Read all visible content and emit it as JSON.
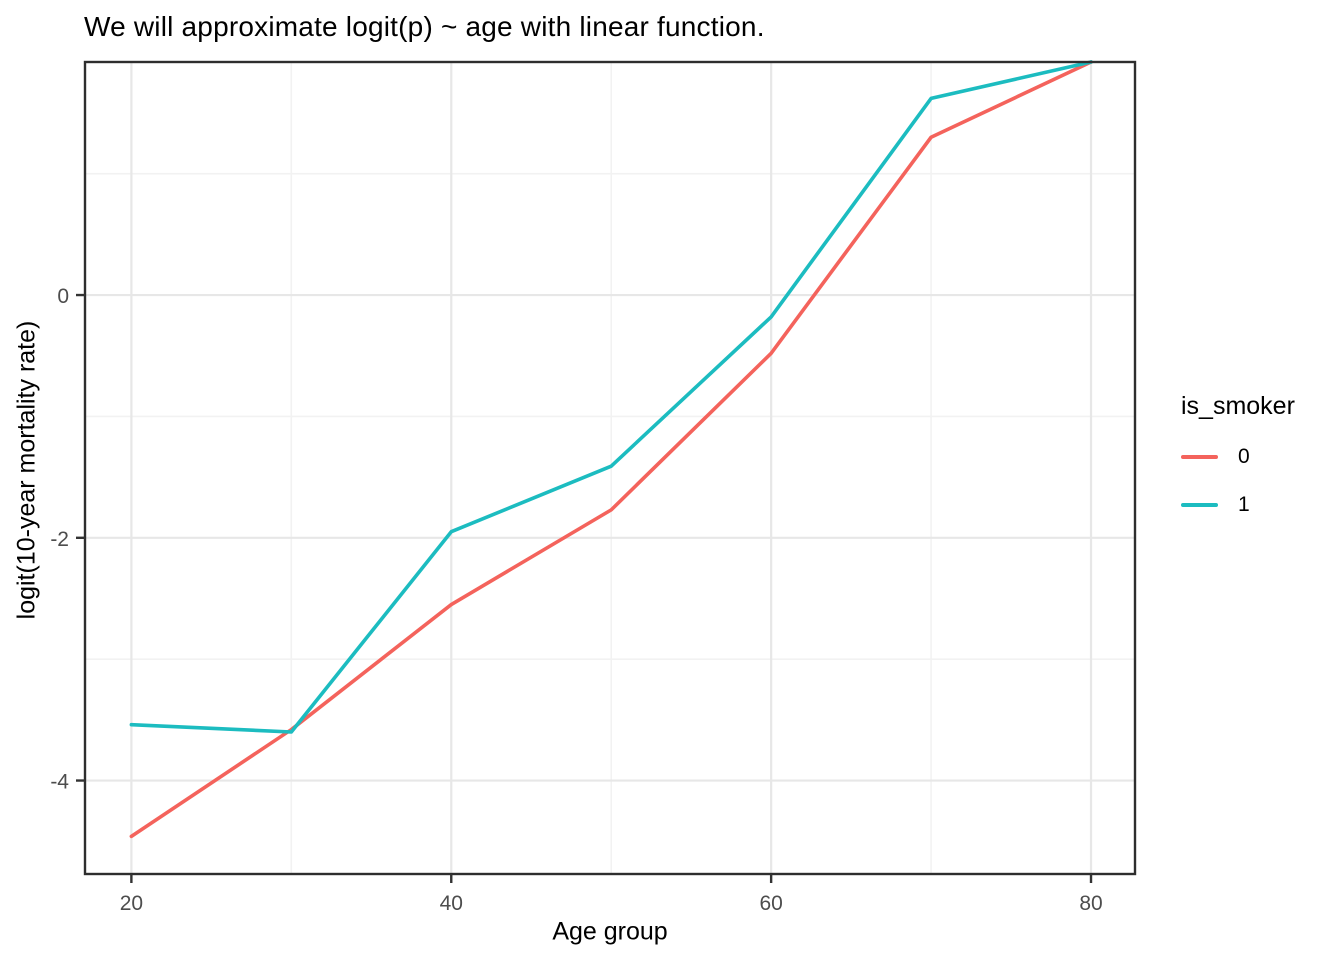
{
  "title": "We will approximate logit(p) ~ age with linear function.",
  "chart_data": {
    "type": "line",
    "x": [
      20,
      30,
      40,
      50,
      60,
      70,
      80
    ],
    "series": [
      {
        "name": "0",
        "color": "#F4635C",
        "values": [
          -4.46,
          -3.58,
          -2.55,
          -1.77,
          -0.48,
          1.3,
          1.92
        ]
      },
      {
        "name": "1",
        "color": "#1CBCC0",
        "values": [
          -3.54,
          -3.6,
          -1.95,
          -1.41,
          -0.18,
          1.62,
          1.92
        ]
      }
    ],
    "title": "We will approximate logit(p) ~ age with linear function.",
    "xlabel": "Age group",
    "ylabel": "logit(10-year mortality rate)",
    "xlim": [
      17.1,
      82.75
    ],
    "ylim": [
      -4.77,
      1.92
    ],
    "x_ticks": {
      "major": [
        20,
        40,
        60,
        80
      ],
      "minor": [
        30,
        50,
        70
      ],
      "labels": [
        "20",
        "40",
        "60",
        "80"
      ]
    },
    "y_ticks": {
      "major": [
        0,
        -2,
        -4
      ],
      "minor": [
        1,
        -1,
        -3
      ],
      "labels": [
        "0",
        "-2",
        "-4"
      ]
    },
    "grid": "on",
    "legend": {
      "title": "is_smoker",
      "position": "right",
      "entries": [
        {
          "label": "0",
          "color": "#F4635C"
        },
        {
          "label": "1",
          "color": "#1CBCC0"
        }
      ]
    }
  },
  "colors": {
    "smoker_0": "#F4635C",
    "smoker_1": "#1CBCC0",
    "major_grid": "#E7E7E7",
    "minor_grid": "#F2F2F2",
    "panel_border": "#2E2E2E",
    "tick": "#333333",
    "tick_label": "#4D4D4D",
    "background": "#FFFFFF"
  }
}
